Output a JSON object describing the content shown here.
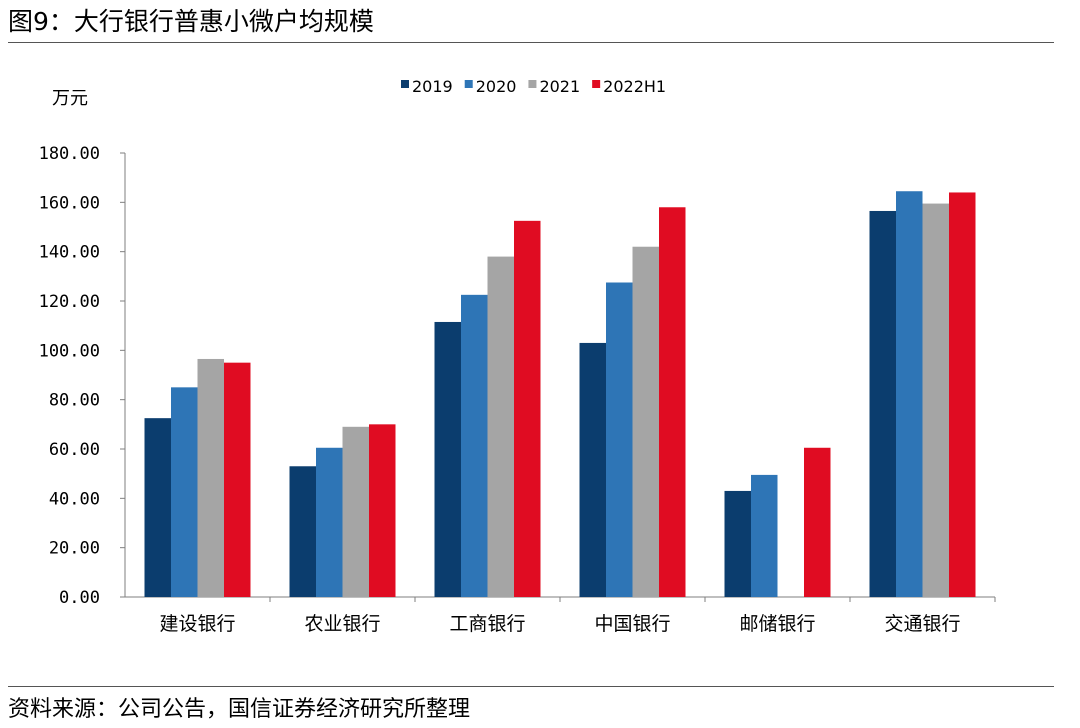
{
  "figure": {
    "title": "图9：大行银行普惠小微户均规模",
    "source": "资料来源：公司公告，国信证券经济研究所整理"
  },
  "chart_data": {
    "type": "bar",
    "title": "",
    "xlabel": "",
    "ylabel": "万元",
    "ylim": [
      0,
      180
    ],
    "yticks": [
      0,
      20,
      40,
      60,
      80,
      100,
      120,
      140,
      160,
      180
    ],
    "ytick_labels": [
      "0.00",
      "20.00",
      "40.00",
      "60.00",
      "80.00",
      "100.00",
      "120.00",
      "140.00",
      "160.00",
      "180.00"
    ],
    "grid": false,
    "legend_position": "top",
    "categories": [
      "建设银行",
      "农业银行",
      "工商银行",
      "中国银行",
      "邮储银行",
      "交通银行"
    ],
    "series": [
      {
        "name": "2019",
        "color": "#0b3d6e",
        "values": [
          72.5,
          53.0,
          111.5,
          103.0,
          43.0,
          156.5
        ]
      },
      {
        "name": "2020",
        "color": "#2e75b6",
        "values": [
          85.0,
          60.5,
          122.5,
          127.5,
          49.5,
          164.5
        ]
      },
      {
        "name": "2021",
        "color": "#a5a5a5",
        "values": [
          96.5,
          69.0,
          138.0,
          142.0,
          null,
          159.5
        ]
      },
      {
        "name": "2022H1",
        "color": "#e00c22",
        "values": [
          95.0,
          70.0,
          152.5,
          158.0,
          60.5,
          164.0
        ]
      }
    ]
  }
}
